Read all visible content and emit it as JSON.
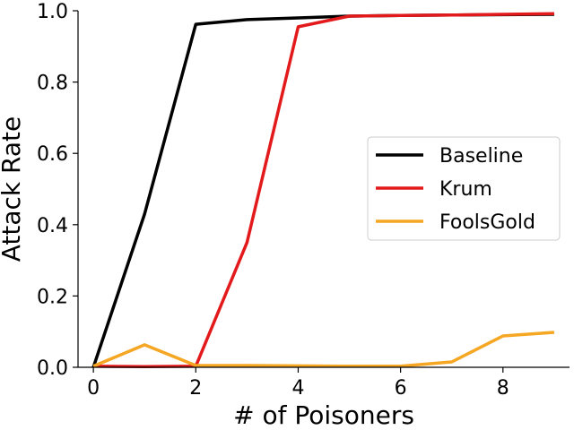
{
  "chart_data": {
    "type": "line",
    "title": "",
    "xlabel": "#  of Poisoners",
    "ylabel": "Attack Rate",
    "xlim": [
      -0.3,
      9.3
    ],
    "ylim": [
      0.0,
      1.0
    ],
    "xticks": [
      0,
      2,
      4,
      6,
      8
    ],
    "yticks": [
      0.0,
      0.2,
      0.4,
      0.6,
      0.8,
      1.0
    ],
    "grid": false,
    "legend_position": "center-right",
    "x": [
      0,
      1,
      2,
      3,
      4,
      5,
      6,
      7,
      8,
      9
    ],
    "series": [
      {
        "name": "Baseline",
        "color": "#000000",
        "values": [
          0.0,
          0.43,
          0.962,
          0.975,
          0.98,
          0.985,
          0.987,
          0.988,
          0.989,
          0.99
        ]
      },
      {
        "name": "Krum",
        "color": "#e31a1c",
        "values": [
          0.003,
          0.002,
          0.003,
          0.35,
          0.955,
          0.985,
          0.987,
          0.988,
          0.99,
          0.992
        ]
      },
      {
        "name": "FoolsGold",
        "color": "#f5a623",
        "values": [
          0.003,
          0.063,
          0.005,
          0.005,
          0.004,
          0.003,
          0.003,
          0.015,
          0.088,
          0.098
        ]
      }
    ]
  }
}
